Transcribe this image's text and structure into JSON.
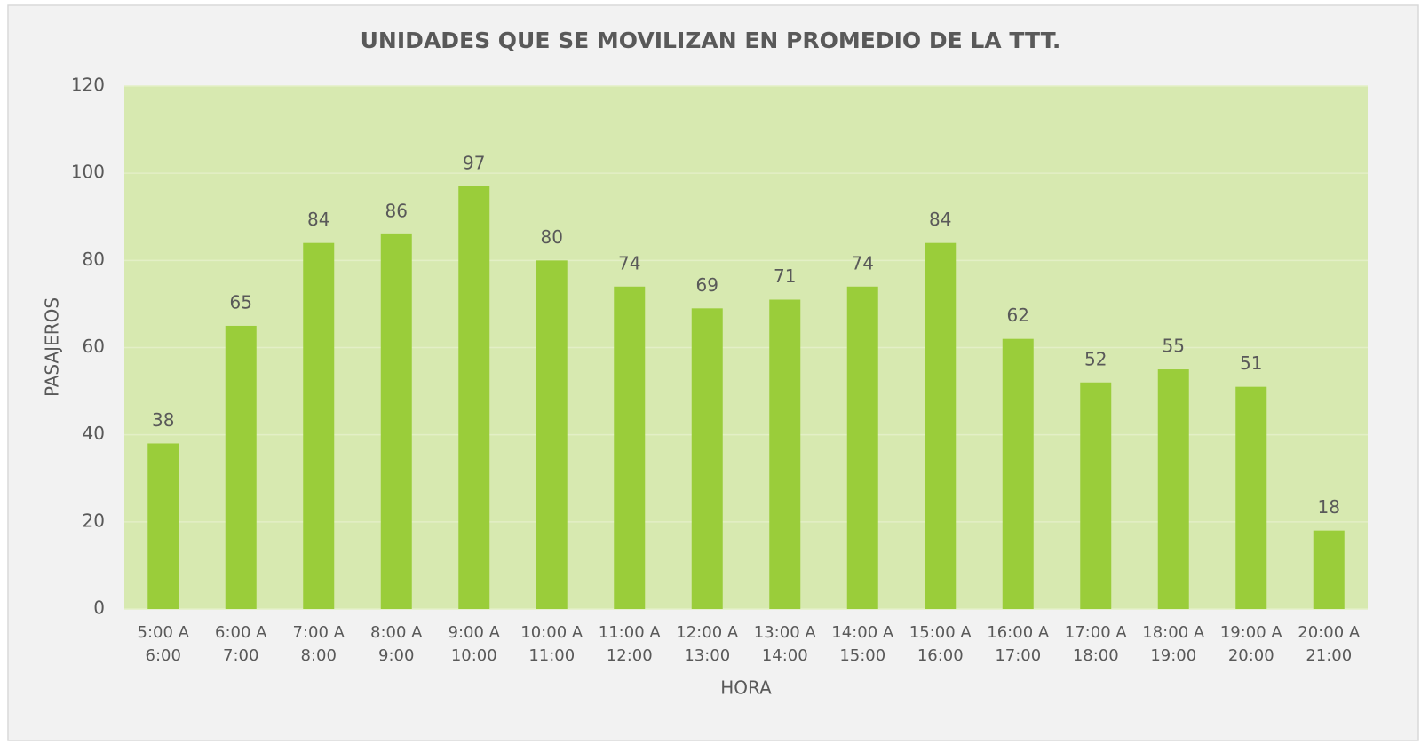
{
  "chart_data": {
    "type": "bar",
    "title": "UNIDADES QUE SE MOVILIZAN EN PROMEDIO  DE LA TTT.",
    "x_label": "HORA",
    "y_label": "PASAJEROS",
    "categories": [
      "5:00 A 6:00",
      "6:00 A 7:00",
      "7:00 A 8:00",
      "8:00 A 9:00",
      "9:00 A 10:00",
      "10:00 A 11:00",
      "11:00 A 12:00",
      "12:00 A 13:00",
      "13:00 A 14:00",
      "14:00 A 15:00",
      "15:00 A 16:00",
      "16:00 A 17:00",
      "17:00 A 18:00",
      "18:00 A 19:00",
      "19:00 A 20:00",
      "20:00 A 21:00"
    ],
    "values": [
      38,
      65,
      84,
      86,
      97,
      80,
      74,
      69,
      71,
      74,
      84,
      62,
      52,
      55,
      51,
      18
    ],
    "color": "#9acd3a",
    "plot_background": "#d7e9b0",
    "ylim": [
      0,
      120
    ],
    "yticks": [
      0,
      20,
      40,
      60,
      80,
      100,
      120
    ],
    "grid": true
  }
}
